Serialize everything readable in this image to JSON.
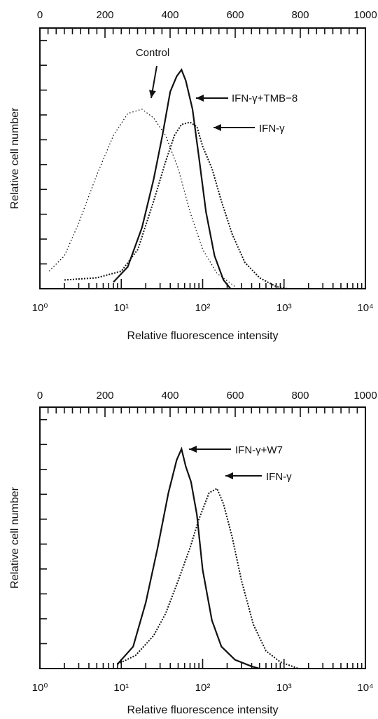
{
  "chart_data": [
    {
      "type": "histogram",
      "title": "",
      "xlabel": "Relative fluorescence intensity",
      "ylabel": "Relative cell number",
      "x_scale": "log",
      "xlim": [
        1,
        10000
      ],
      "x_tick_labels": [
        "10⁰",
        "10¹",
        "10²",
        "10³",
        "10⁴"
      ],
      "top_axis": {
        "scale": "linear",
        "range": [
          0,
          1000
        ],
        "tick_labels": [
          "0",
          "200",
          "400",
          "600",
          "800",
          "1000"
        ]
      },
      "y_unit": "relative (0-1)",
      "series": [
        {
          "name": "Control",
          "style": "dotted",
          "points": [
            [
              1.3,
              0.08
            ],
            [
              2,
              0.15
            ],
            [
              3,
              0.3
            ],
            [
              5,
              0.52
            ],
            [
              8,
              0.7
            ],
            [
              12,
              0.8
            ],
            [
              18,
              0.82
            ],
            [
              25,
              0.78
            ],
            [
              35,
              0.7
            ],
            [
              50,
              0.55
            ],
            [
              70,
              0.35
            ],
            [
              100,
              0.18
            ],
            [
              150,
              0.07
            ],
            [
              250,
              0.01
            ]
          ]
        },
        {
          "name": "IFN-γ+TMB−8",
          "style": "solid",
          "points": [
            [
              8,
              0.03
            ],
            [
              12,
              0.1
            ],
            [
              18,
              0.28
            ],
            [
              25,
              0.5
            ],
            [
              32,
              0.7
            ],
            [
              40,
              0.9
            ],
            [
              48,
              0.97
            ],
            [
              55,
              1.0
            ],
            [
              62,
              0.95
            ],
            [
              75,
              0.82
            ],
            [
              90,
              0.6
            ],
            [
              110,
              0.35
            ],
            [
              140,
              0.15
            ],
            [
              180,
              0.04
            ],
            [
              220,
              0.0
            ]
          ]
        },
        {
          "name": "IFN-γ",
          "style": "dotted-thick",
          "points": [
            [
              2,
              0.04
            ],
            [
              5,
              0.05
            ],
            [
              10,
              0.08
            ],
            [
              16,
              0.18
            ],
            [
              25,
              0.4
            ],
            [
              35,
              0.58
            ],
            [
              45,
              0.7
            ],
            [
              55,
              0.75
            ],
            [
              70,
              0.76
            ],
            [
              85,
              0.74
            ],
            [
              100,
              0.65
            ],
            [
              130,
              0.55
            ],
            [
              170,
              0.4
            ],
            [
              230,
              0.25
            ],
            [
              330,
              0.12
            ],
            [
              500,
              0.05
            ],
            [
              800,
              0.01
            ],
            [
              1100,
              0.0
            ]
          ]
        }
      ],
      "annotations": [
        "Control",
        "IFN-γ+TMB−8",
        "IFN-γ"
      ]
    },
    {
      "type": "histogram",
      "title": "",
      "xlabel": "Relative fluorescence intensity",
      "ylabel": "Relative cell number",
      "x_scale": "log",
      "xlim": [
        1,
        10000
      ],
      "x_tick_labels": [
        "10⁰",
        "10¹",
        "10²",
        "10³",
        "10⁴"
      ],
      "top_axis": {
        "scale": "linear",
        "range": [
          0,
          1000
        ],
        "tick_labels": [
          "0",
          "200",
          "400",
          "600",
          "800",
          "1000"
        ]
      },
      "y_unit": "relative (0-1)",
      "series": [
        {
          "name": "IFN-γ+W7",
          "style": "solid",
          "points": [
            [
              9,
              0.02
            ],
            [
              14,
              0.1
            ],
            [
              20,
              0.3
            ],
            [
              28,
              0.55
            ],
            [
              38,
              0.8
            ],
            [
              48,
              0.95
            ],
            [
              55,
              1.0
            ],
            [
              62,
              0.92
            ],
            [
              72,
              0.85
            ],
            [
              85,
              0.7
            ],
            [
              100,
              0.45
            ],
            [
              130,
              0.22
            ],
            [
              170,
              0.1
            ],
            [
              250,
              0.04
            ],
            [
              400,
              0.01
            ],
            [
              500,
              0.0
            ]
          ]
        },
        {
          "name": "IFN-γ",
          "style": "dotted-thick",
          "points": [
            [
              9,
              0.02
            ],
            [
              15,
              0.06
            ],
            [
              25,
              0.15
            ],
            [
              35,
              0.25
            ],
            [
              50,
              0.4
            ],
            [
              70,
              0.55
            ],
            [
              90,
              0.68
            ],
            [
              120,
              0.8
            ],
            [
              150,
              0.82
            ],
            [
              180,
              0.75
            ],
            [
              230,
              0.6
            ],
            [
              300,
              0.4
            ],
            [
              420,
              0.2
            ],
            [
              600,
              0.08
            ],
            [
              900,
              0.03
            ],
            [
              1500,
              0.0
            ]
          ]
        }
      ],
      "annotations": [
        "IFN-γ+W7",
        "IFN-γ"
      ]
    }
  ]
}
